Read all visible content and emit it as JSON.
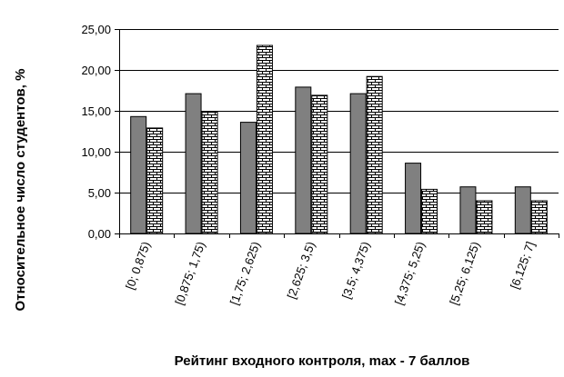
{
  "chart_data": {
    "type": "bar",
    "title": "",
    "xlabel": "Рейтинг входного контроля, max - 7 баллов",
    "ylabel": "Относительное число студентов, %",
    "ylim": [
      0,
      25
    ],
    "yticks": [
      "0,00",
      "5,00",
      "10,00",
      "15,00",
      "20,00",
      "25,00"
    ],
    "categories": [
      "[0; 0,875)",
      "[0,875; 1,75)",
      "[1,75; 2,625)",
      "[2,625; 3,5)",
      "[3,5; 4,375)",
      "[4,375; 5,25)",
      "[5,25; 6,125)",
      "[6,125; 7]"
    ],
    "series": [
      {
        "values": [
          14.3,
          17.1,
          13.6,
          17.9,
          17.1,
          8.6,
          5.7,
          5.7
        ],
        "color": "#808080",
        "pattern": "solid"
      },
      {
        "values": [
          12.9,
          14.9,
          23.0,
          16.9,
          19.2,
          5.4,
          4.0,
          4.0
        ],
        "color": "#ffffff",
        "pattern": "brick"
      }
    ],
    "grid": "horizontal",
    "legend": "none"
  }
}
